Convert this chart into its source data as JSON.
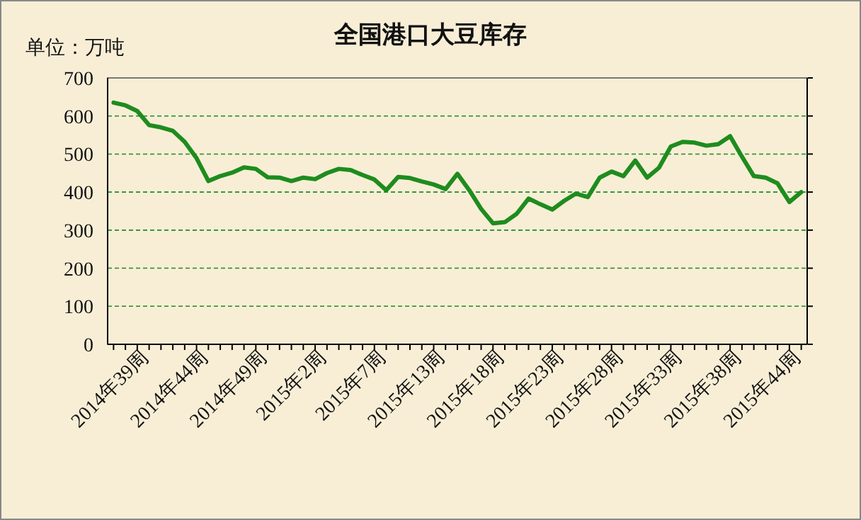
{
  "chart_data": {
    "type": "line",
    "title": "全国港口大豆库存",
    "ylabel": "单位：万吨",
    "categories": [
      null,
      null,
      null,
      "2014年39周",
      null,
      null,
      null,
      null,
      "2014年44周",
      null,
      null,
      null,
      null,
      "2014年49周",
      null,
      null,
      null,
      null,
      "2015年2周",
      null,
      null,
      null,
      null,
      "2015年7周",
      null,
      null,
      null,
      null,
      "2015年13周",
      null,
      null,
      null,
      null,
      "2015年18周",
      null,
      null,
      null,
      null,
      "2015年23周",
      null,
      null,
      null,
      null,
      "2015年28周",
      null,
      null,
      null,
      null,
      "2015年33周",
      null,
      null,
      null,
      null,
      "2015年38周",
      null,
      null,
      null,
      null,
      "2015年44周"
    ],
    "series": [
      {
        "color": "#1e8c1e",
        "values": [
          635,
          628,
          613,
          576,
          570,
          561,
          532,
          489,
          429,
          442,
          451,
          465,
          461,
          439,
          438,
          429,
          438,
          434,
          450,
          461,
          458,
          445,
          433,
          405,
          440,
          437,
          428,
          420,
          408,
          448,
          405,
          356,
          318,
          321,
          343,
          383,
          368,
          354,
          377,
          396,
          387,
          438,
          454,
          442,
          483,
          438,
          464,
          520,
          532,
          530,
          522,
          526,
          547,
          493,
          442,
          438,
          423,
          374,
          400
        ]
      }
    ],
    "ylim": [
      0,
      700
    ],
    "yticks": [
      0,
      100,
      200,
      300,
      400,
      500,
      600,
      700
    ],
    "grid": "y",
    "marker": "none",
    "line_style": "solid"
  }
}
